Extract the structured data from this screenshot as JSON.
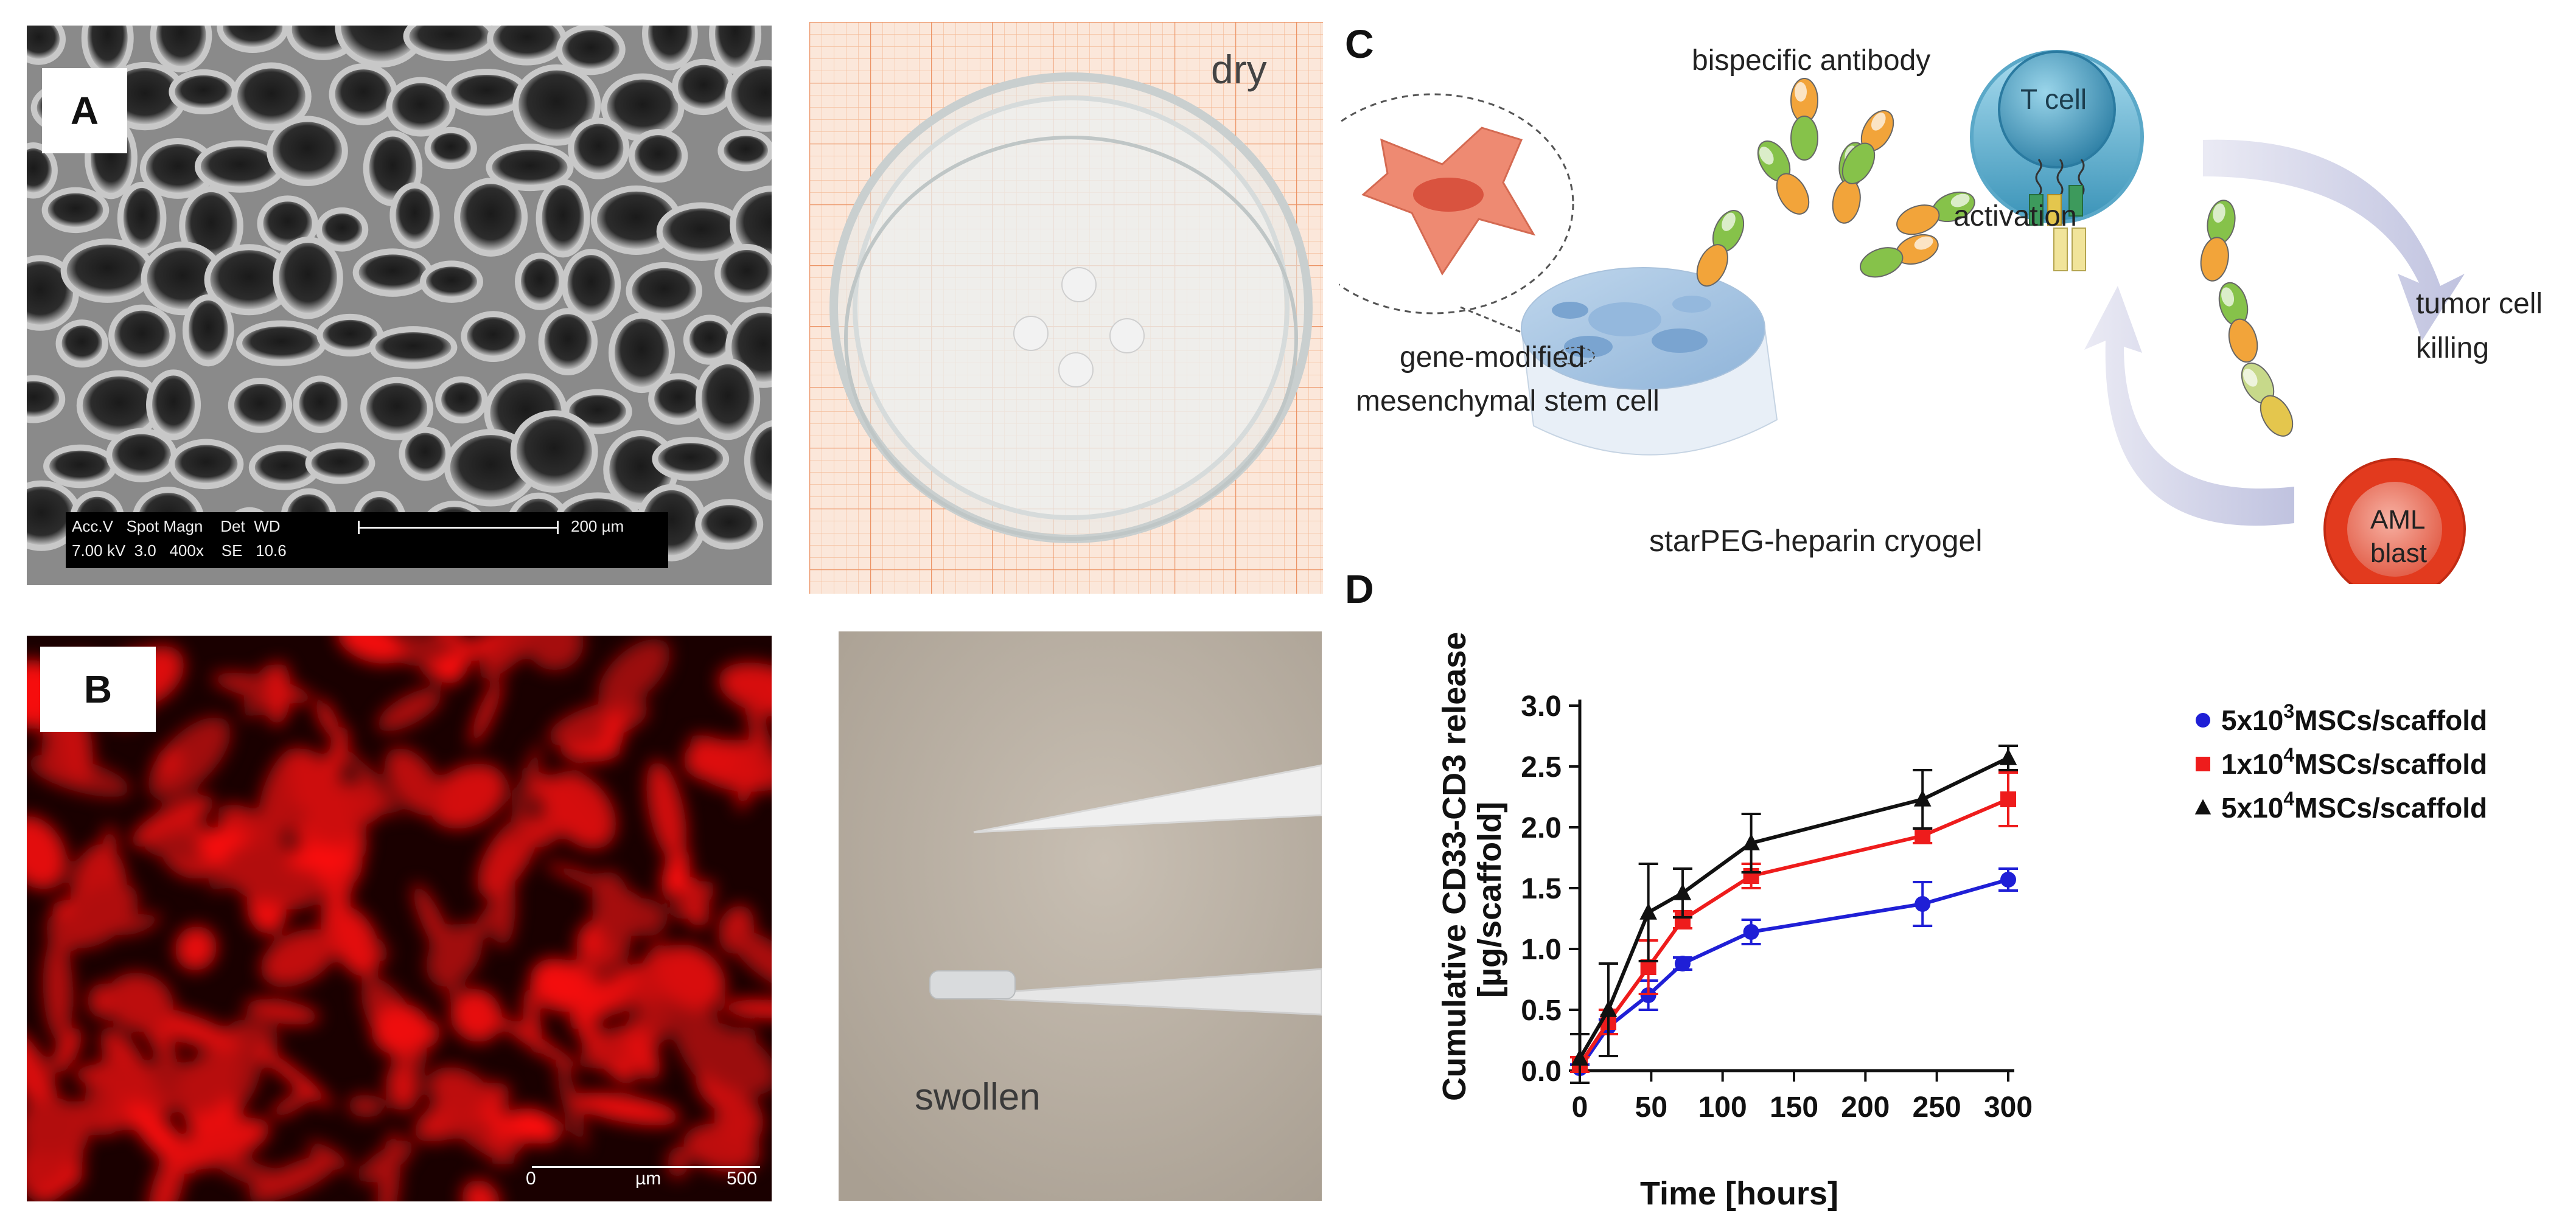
{
  "panels": {
    "a": {
      "label": "A",
      "sem_info": {
        "accv": "Acc.V",
        "spot": "Spot",
        "magn": "Magn",
        "det": "Det",
        "wd": "WD",
        "kv": "7.00 kV",
        "spot_val": "3.0",
        "mag_val": "400x",
        "det_val": "SE",
        "wd_val": "10.6",
        "scale": "200 µm"
      },
      "dry_label": "dry"
    },
    "b": {
      "label": "B",
      "scale": {
        "start": "0",
        "unit": "µm",
        "end": "500"
      },
      "swollen_label": "swollen"
    },
    "c": {
      "label": "C",
      "bispecific_label": "bispecific antibody",
      "activation_label": "activation",
      "tcell_label": "T cell",
      "aml_label_1": "AML",
      "aml_label_2": "blast",
      "tumor_label_1": "tumor cell",
      "tumor_label_2": "killing",
      "msc_label_1": "gene-modified",
      "msc_label_2": "mesenchymal stem cell",
      "cryogel_label": "starPEG-heparin cryogel"
    },
    "d": {
      "label": "D"
    }
  },
  "chart_data": {
    "type": "line",
    "xlabel": "Time [hours]",
    "ylabel_line1": "Cumulative CD33-CD3 release",
    "ylabel_line2": "[µg/scaffold]",
    "xlim": [
      0,
      300
    ],
    "ylim": [
      0,
      3.0
    ],
    "xticks": [
      "0",
      "50",
      "100",
      "150",
      "200",
      "250",
      "300"
    ],
    "yticks": [
      "0.0",
      "0.5",
      "1.0",
      "1.5",
      "2.0",
      "2.5",
      "3.0"
    ],
    "x": [
      0,
      20,
      48,
      72,
      120,
      240,
      300
    ],
    "series": [
      {
        "name_pre": "5x10",
        "name_sup": "3",
        "name_post": "MSCs/scaffold",
        "color": "#1f1fd6",
        "marker": "circle",
        "values": [
          0.02,
          0.36,
          0.62,
          0.88,
          1.14,
          1.37,
          1.57
        ],
        "errors": [
          0.03,
          0.06,
          0.12,
          0.05,
          0.1,
          0.18,
          0.09
        ]
      },
      {
        "name_pre": "1x10",
        "name_sup": "4",
        "name_post": "MSCs/scaffold",
        "color": "#ee1c1c",
        "marker": "square",
        "values": [
          0.05,
          0.4,
          0.85,
          1.24,
          1.6,
          1.93,
          2.23
        ],
        "errors": [
          0.06,
          0.1,
          0.22,
          0.07,
          0.1,
          0.06,
          0.22
        ]
      },
      {
        "name_pre": "5x10",
        "name_sup": "4",
        "name_post": "MSCs/scaffold",
        "color": "#111111",
        "marker": "triangle",
        "values": [
          0.1,
          0.5,
          1.3,
          1.46,
          1.87,
          2.23,
          2.57
        ],
        "errors": [
          0.2,
          0.38,
          0.4,
          0.2,
          0.24,
          0.24,
          0.1
        ]
      }
    ],
    "legend_position": "right"
  }
}
